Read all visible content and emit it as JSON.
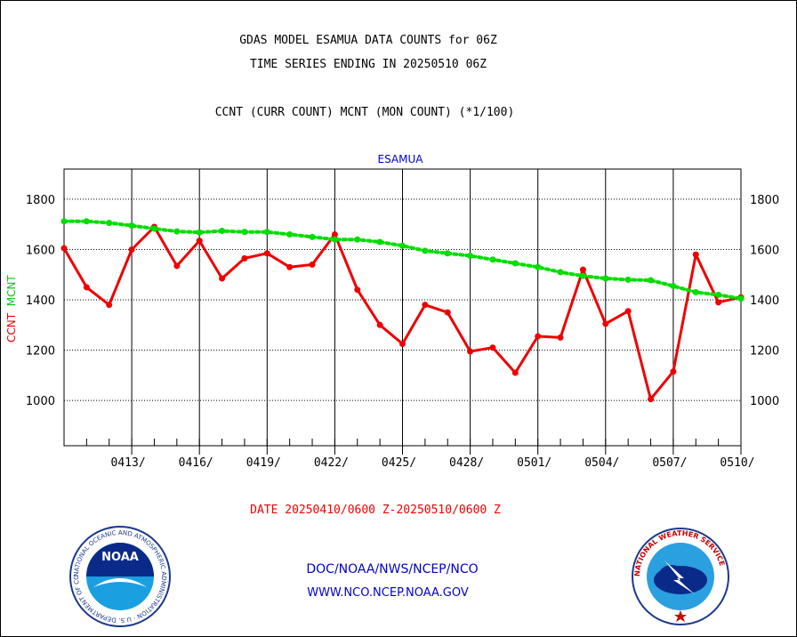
{
  "header": {
    "line1": "GDAS MODEL ESAMUA DATA COUNTS for 06Z",
    "line2": "TIME SERIES ENDING IN 20250510 06Z",
    "line3": "CCNT (CURR COUNT) MCNT (MON COUNT) (*1/100)"
  },
  "footer": {
    "date_range": "DATE 20250410/0600 Z-20250510/0600 Z",
    "doc_link": "DOC/NOAA/NWS/NCEP/NCO",
    "www_link": "WWW.NCO.NCEP.NOAA.GOV"
  },
  "logos": {
    "noaa_badge": "NOAA",
    "noaa_ring": "NATIONAL OCEANIC AND ATMOSPHERIC ADMINISTRATION · U.S. DEPARTMENT OF COMMERCE",
    "nws_ring": "NATIONAL WEATHER SERVICE"
  },
  "chart_data": {
    "type": "line",
    "title": "ESAMUA",
    "ylabel_series": [
      "CCNT",
      "MCNT"
    ],
    "ylim": [
      820,
      1920
    ],
    "yticks": [
      1000,
      1200,
      1400,
      1600,
      1800
    ],
    "xlim": [
      0,
      30
    ],
    "xticks": [
      {
        "x": 3,
        "label": "0413/"
      },
      {
        "x": 6,
        "label": "0416/"
      },
      {
        "x": 9,
        "label": "0419/"
      },
      {
        "x": 12,
        "label": "0422/"
      },
      {
        "x": 15,
        "label": "0425/"
      },
      {
        "x": 18,
        "label": "0428/"
      },
      {
        "x": 21,
        "label": "0501/"
      },
      {
        "x": 24,
        "label": "0504/"
      },
      {
        "x": 27,
        "label": "0507/"
      },
      {
        "x": 30,
        "label": "0510/"
      }
    ],
    "grid": true,
    "x_days": [
      0,
      1,
      2,
      3,
      4,
      5,
      6,
      7,
      8,
      9,
      10,
      11,
      12,
      13,
      14,
      15,
      16,
      17,
      18,
      19,
      20,
      21,
      22,
      23,
      24,
      25,
      26,
      27,
      28,
      29,
      30
    ],
    "series": [
      {
        "name": "CCNT",
        "color": "#ee0000",
        "style": "solid",
        "values": [
          1605,
          1450,
          1380,
          1600,
          1690,
          1535,
          1635,
          1485,
          1565,
          1585,
          1530,
          1540,
          1660,
          1440,
          1300,
          1225,
          1380,
          1350,
          1195,
          1210,
          1110,
          1255,
          1250,
          1520,
          1305,
          1355,
          1005,
          1115,
          1580,
          1390,
          1410
        ]
      },
      {
        "name": "MCNT",
        "color": "#00dd00",
        "style": "dotted",
        "values": [
          1712,
          1712,
          1706,
          1695,
          1683,
          1672,
          1668,
          1674,
          1670,
          1670,
          1660,
          1650,
          1640,
          1640,
          1630,
          1615,
          1595,
          1585,
          1575,
          1560,
          1545,
          1530,
          1510,
          1495,
          1485,
          1480,
          1478,
          1455,
          1430,
          1420,
          1405
        ]
      }
    ]
  }
}
